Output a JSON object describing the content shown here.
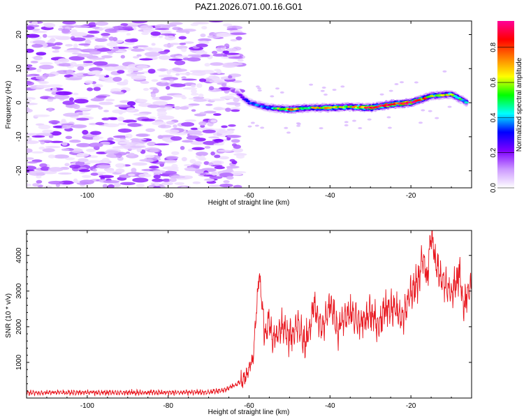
{
  "title": "PAZ1.2026.071.00.16.G01",
  "chart_data": [
    {
      "type": "heatmap",
      "name": "spectrogram",
      "xlabel": "Height of straight line (km)",
      "ylabel": "Frequency (Hz)",
      "xlim": [
        -115,
        -5
      ],
      "ylim": [
        -25,
        24
      ],
      "xticks": [
        -100,
        -80,
        -60,
        -40,
        -20
      ],
      "yticks": [
        -20,
        -10,
        0,
        10,
        20
      ],
      "noise_region_x": [
        -115,
        -62
      ],
      "signal_ridge": {
        "x": [
          -63,
          -60,
          -55,
          -50,
          -45,
          -40,
          -35,
          -30,
          -25,
          -20,
          -15,
          -10,
          -6
        ],
        "freq": [
          3,
          0,
          -1.5,
          -2,
          -1.5,
          -1.5,
          -1.2,
          -1.5,
          -0.5,
          0,
          2,
          2.5,
          0
        ],
        "amplitude": [
          0.15,
          0.3,
          0.4,
          0.75,
          0.55,
          0.75,
          0.6,
          0.9,
          0.9,
          0.95,
          0.6,
          0.55,
          0.4
        ]
      },
      "colorbar": {
        "label": "Normalized spectral amplitude",
        "ticks": [
          0.0,
          0.2,
          0.4,
          0.6,
          0.8
        ],
        "range": [
          0,
          0.95
        ],
        "colors": [
          "#ffffff",
          "#cc99ff",
          "#7f00ff",
          "#0000ff",
          "#00ffff",
          "#00ff00",
          "#ffff00",
          "#ff8000",
          "#ff0000",
          "#ff0099"
        ]
      }
    },
    {
      "type": "line",
      "name": "snr",
      "xlabel": "Height of straight line (km)",
      "ylabel": "SNR (10 * v/v)",
      "xlim": [
        -115,
        -5
      ],
      "ylim": [
        0,
        4700
      ],
      "xticks": [
        -100,
        -80,
        -60,
        -40,
        -20
      ],
      "yticks": [
        1000,
        2000,
        3000,
        4000
      ],
      "color": "#e8141c",
      "series": [
        {
          "name": "SNR",
          "x": [
            -115,
            -70,
            -66,
            -63,
            -61,
            -59,
            -57.5,
            -56.5,
            -56,
            -55,
            -54,
            -52,
            -50,
            -48,
            -46,
            -44,
            -42,
            -40,
            -38,
            -36,
            -34,
            -32,
            -30,
            -28,
            -26,
            -24,
            -22,
            -20,
            -18,
            -17,
            -16,
            -15,
            -14,
            -12,
            -10,
            -8,
            -7,
            -6,
            -5
          ],
          "y": [
            150,
            160,
            230,
            400,
            550,
            1100,
            3550,
            2200,
            1800,
            2100,
            1600,
            2000,
            1700,
            2050,
            1500,
            2600,
            2000,
            2700,
            1900,
            2400,
            2300,
            2100,
            2400,
            2000,
            2600,
            2500,
            2300,
            3000,
            3300,
            4050,
            3300,
            4700,
            3900,
            3200,
            2900,
            3500,
            2600,
            3000,
            3150
          ]
        }
      ]
    }
  ]
}
